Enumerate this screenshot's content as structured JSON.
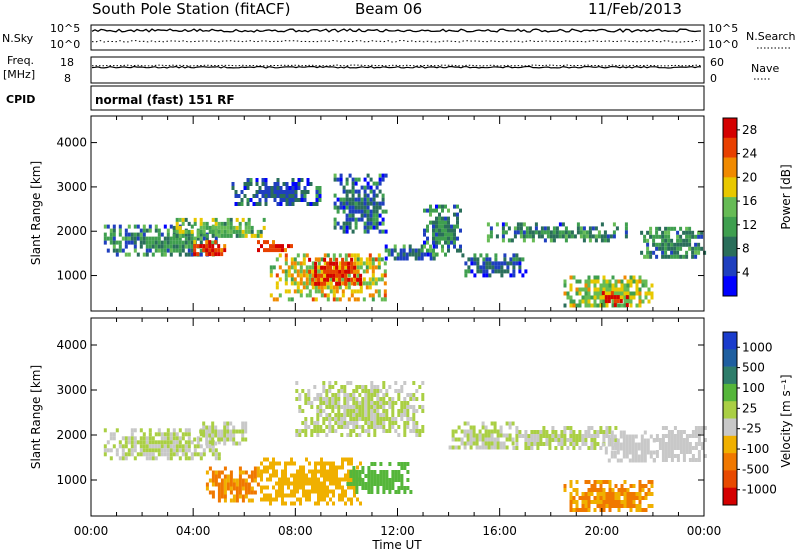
{
  "header": {
    "station": "South Pole Station (fitACF)",
    "beam": "Beam 06",
    "date": "11/Feb/2013"
  },
  "side_labels": {
    "nsky": "N.Sky",
    "nsky_ticks": [
      "10^5",
      "10^0"
    ],
    "nsearch": "N.Search",
    "nsearch_ticks": [
      "10^5",
      "10^0"
    ],
    "freq": "Freq.",
    "freq_unit": "[MHz]",
    "freq_ticks": [
      "18",
      "8"
    ],
    "nave": "Nave",
    "nave_ticks": [
      "60",
      "0"
    ],
    "cpid": "CPID",
    "cpid_value": "normal (fast) 151 RF"
  },
  "colors": {
    "power_scale": [
      "#0000ff",
      "#1f3fbf",
      "#2a6e5a",
      "#3f9f4f",
      "#66bb55",
      "#e8c800",
      "#f08a00",
      "#e84000",
      "#d40000"
    ],
    "velocity_scale": [
      "#1a3ccc",
      "#1f5fa0",
      "#2e7d6a",
      "#55b63a",
      "#aacf44",
      "#c8c8c8",
      "#f0b000",
      "#f07800",
      "#e84a00",
      "#d40000"
    ]
  },
  "chart_data": [
    {
      "type": "heatmap",
      "panel": "power",
      "ylabel": "Slant Range [km]",
      "yticks": [
        "1000",
        "2000",
        "3000",
        "4000"
      ],
      "ylim": [
        200,
        4600
      ],
      "xlim": [
        "00:00",
        "24:00"
      ],
      "colorbar_label": "Power [dB]",
      "colorbar_ticks": [
        "4",
        "8",
        "12",
        "16",
        "20",
        "24",
        "28"
      ],
      "colorbar_range": [
        0,
        30
      ],
      "regions": [
        {
          "t": [
            0.5,
            5.0
          ],
          "r": [
            1450,
            2150
          ],
          "v": 10
        },
        {
          "t": [
            3.2,
            6.8
          ],
          "r": [
            1850,
            2300
          ],
          "v": 14
        },
        {
          "t": [
            4.0,
            5.2
          ],
          "r": [
            1500,
            1800
          ],
          "v": 26
        },
        {
          "t": [
            6.5,
            8.0
          ],
          "r": [
            1550,
            1800
          ],
          "v": 27
        },
        {
          "t": [
            7.0,
            11.5
          ],
          "r": [
            500,
            1500
          ],
          "v": 18
        },
        {
          "t": [
            8.5,
            10.5
          ],
          "r": [
            800,
            1400
          ],
          "v": 27
        },
        {
          "t": [
            5.5,
            9.0
          ],
          "r": [
            2600,
            3200
          ],
          "v": 6
        },
        {
          "t": [
            9.5,
            11.5
          ],
          "r": [
            2000,
            3300
          ],
          "v": 8
        },
        {
          "t": [
            11.5,
            13.5
          ],
          "r": [
            1400,
            1700
          ],
          "v": 7
        },
        {
          "t": [
            13.0,
            14.5
          ],
          "r": [
            1500,
            2600
          ],
          "v": 9
        },
        {
          "t": [
            14.5,
            17.0
          ],
          "r": [
            1000,
            1500
          ],
          "v": 7
        },
        {
          "t": [
            15.5,
            21.0
          ],
          "r": [
            1800,
            2200
          ],
          "v": 10
        },
        {
          "t": [
            18.5,
            22.0
          ],
          "r": [
            300,
            1000
          ],
          "v": 16
        },
        {
          "t": [
            20.0,
            21.0
          ],
          "r": [
            350,
            650
          ],
          "v": 28
        },
        {
          "t": [
            21.5,
            24.0
          ],
          "r": [
            1400,
            2100
          ],
          "v": 10
        }
      ]
    },
    {
      "type": "heatmap",
      "panel": "velocity",
      "ylabel": "Slant Range [km]",
      "yticks": [
        "1000",
        "2000",
        "3000",
        "4000"
      ],
      "ylim": [
        200,
        4600
      ],
      "xlim": [
        "00:00",
        "24:00"
      ],
      "xticks": [
        "00:00",
        "04:00",
        "08:00",
        "12:00",
        "16:00",
        "20:00",
        "00:00"
      ],
      "xlabel": "Time UT",
      "colorbar_label": "Velocity [m s⁻¹]",
      "colorbar_ticks": [
        "1000",
        "500",
        "100",
        "25",
        "-25",
        "-100",
        "-500",
        "-1000"
      ],
      "colorbar_range": [
        -1200,
        1200
      ],
      "regions": [
        {
          "t": [
            0.5,
            5.0
          ],
          "r": [
            1450,
            2150
          ],
          "v": 0
        },
        {
          "t": [
            4.0,
            6.0
          ],
          "r": [
            1850,
            2300
          ],
          "v": 0
        },
        {
          "t": [
            4.5,
            6.5
          ],
          "r": [
            500,
            1300
          ],
          "v": -500
        },
        {
          "t": [
            6.5,
            10.5
          ],
          "r": [
            500,
            1500
          ],
          "v": -400
        },
        {
          "t": [
            10.0,
            12.5
          ],
          "r": [
            700,
            1400
          ],
          "v": 300
        },
        {
          "t": [
            8.0,
            13.0
          ],
          "r": [
            2000,
            3200
          ],
          "v": 0
        },
        {
          "t": [
            14.0,
            16.5
          ],
          "r": [
            1700,
            2300
          ],
          "v": 0
        },
        {
          "t": [
            16.5,
            20.5
          ],
          "r": [
            1700,
            2200
          ],
          "v": 0
        },
        {
          "t": [
            18.5,
            22.0
          ],
          "r": [
            300,
            1000
          ],
          "v": -500
        },
        {
          "t": [
            20.0,
            22.0
          ],
          "r": [
            1400,
            2100
          ],
          "v": -100
        },
        {
          "t": [
            22.0,
            24.0
          ],
          "r": [
            1400,
            2200
          ],
          "v": -60
        }
      ]
    }
  ]
}
